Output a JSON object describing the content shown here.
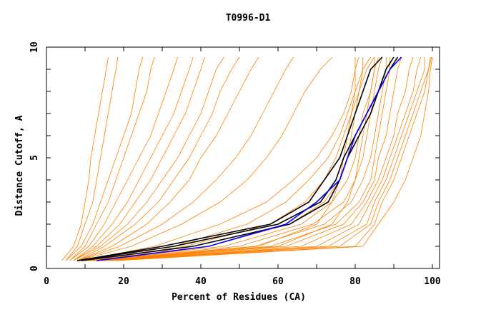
{
  "chart_data": {
    "type": "line",
    "title": "T0996-D1",
    "xlabel": "Percent of Residues (CA)",
    "ylabel": "Distance Cutoff, A",
    "xlim": [
      0,
      102
    ],
    "ylim": [
      0,
      10
    ],
    "xticks": [
      0,
      20,
      40,
      60,
      80,
      100
    ],
    "yticks": [
      0,
      5,
      10
    ],
    "grid": false,
    "colors": {
      "other": "#ff8000",
      "highlight_black": "#000000",
      "highlight_blue": "#0000ff"
    },
    "y_levels": [
      0.35,
      1,
      2,
      3,
      4,
      5,
      6,
      7,
      8,
      9,
      9.55
    ],
    "series": [
      {
        "color": "other",
        "x": [
          4,
          7,
          9,
          10,
          11,
          11.5,
          12.5,
          13.5,
          14.5,
          15.5,
          16
        ]
      },
      {
        "color": "other",
        "x": [
          5,
          8,
          10,
          12,
          13,
          14,
          15,
          16,
          17,
          18,
          18.5
        ]
      },
      {
        "color": "other",
        "x": [
          5,
          9,
          12,
          14,
          16,
          18,
          20,
          22,
          23,
          24,
          25
        ]
      },
      {
        "color": "other",
        "x": [
          6,
          10,
          13,
          16,
          18,
          20,
          22,
          24,
          26,
          27,
          28
        ]
      },
      {
        "color": "other",
        "x": [
          6,
          11,
          15,
          18,
          21,
          24,
          27,
          29,
          31,
          33,
          34
        ]
      },
      {
        "color": "other",
        "x": [
          7,
          12,
          17,
          21,
          24,
          27,
          30,
          33,
          35,
          37,
          38
        ]
      },
      {
        "color": "other",
        "x": [
          7,
          13,
          19,
          23,
          27,
          30,
          33,
          36,
          38,
          40,
          41
        ]
      },
      {
        "color": "other",
        "x": [
          7,
          14,
          21,
          26,
          30,
          34,
          37,
          40,
          42,
          44,
          46
        ]
      },
      {
        "color": "other",
        "x": [
          8,
          15,
          23,
          29,
          33,
          37,
          40,
          43,
          45,
          48,
          50
        ]
      },
      {
        "color": "other",
        "x": [
          8,
          17,
          26,
          32,
          37,
          40,
          44,
          47,
          50,
          53,
          55
        ]
      },
      {
        "color": "other",
        "x": [
          8,
          19,
          30,
          38,
          44,
          49,
          53,
          56,
          59,
          62,
          64
        ]
      },
      {
        "color": "other",
        "x": [
          8,
          22,
          35,
          45,
          52,
          57,
          61,
          64,
          67,
          71,
          74
        ]
      },
      {
        "color": "other",
        "x": [
          9,
          28,
          45,
          57,
          64,
          70,
          74,
          77,
          79,
          80,
          81
        ]
      },
      {
        "color": "other",
        "x": [
          9,
          33,
          52,
          62,
          68,
          73,
          76,
          78,
          80,
          82,
          84
        ]
      },
      {
        "color": "other",
        "x": [
          10,
          36,
          58,
          67,
          72,
          75,
          77,
          79,
          81,
          83,
          85
        ]
      },
      {
        "color": "other",
        "x": [
          10,
          42,
          63,
          72,
          76,
          78,
          79,
          80,
          81,
          82,
          82
        ]
      },
      {
        "color": "other",
        "x": [
          10,
          46,
          66,
          74,
          78,
          80,
          81,
          82,
          84,
          85,
          86
        ]
      },
      {
        "color": "other",
        "x": [
          11,
          50,
          69,
          77,
          80,
          82,
          83,
          84,
          85,
          86,
          87
        ]
      },
      {
        "color": "other",
        "x": [
          11,
          54,
          72,
          79,
          82,
          84,
          85,
          86,
          87,
          88,
          88
        ]
      },
      {
        "color": "other",
        "x": [
          12,
          58,
          75,
          81,
          84,
          85,
          86,
          87,
          88,
          89,
          89
        ]
      },
      {
        "color": "other",
        "x": [
          12,
          62,
          77,
          82,
          85,
          86,
          88,
          89,
          90,
          91,
          92
        ]
      },
      {
        "color": "other",
        "x": [
          13,
          66,
          79,
          83,
          86,
          88,
          90,
          91,
          93,
          94,
          95
        ]
      },
      {
        "color": "other",
        "x": [
          14,
          70,
          81,
          84,
          87,
          89,
          91,
          93,
          95,
          96,
          97
        ]
      },
      {
        "color": "other",
        "x": [
          15,
          73,
          83,
          85,
          88,
          90,
          92,
          94,
          96,
          98,
          98
        ]
      },
      {
        "color": "other",
        "x": [
          16,
          76,
          84,
          86,
          89,
          91,
          93,
          95,
          97,
          99,
          99.5
        ]
      },
      {
        "color": "other",
        "x": [
          17,
          80,
          85,
          87,
          90,
          92,
          94,
          96,
          98,
          99,
          99.8
        ]
      },
      {
        "color": "other",
        "x": [
          18,
          82,
          86,
          90,
          93,
          95,
          97,
          98,
          99,
          99.5,
          100
        ]
      },
      {
        "color": "other",
        "x": [
          14,
          60,
          74,
          78,
          80,
          81,
          82,
          83,
          84,
          85,
          85
        ]
      },
      {
        "color": "other",
        "x": [
          13,
          55,
          70,
          74,
          76,
          77,
          78,
          79,
          80,
          80,
          80
        ]
      },
      {
        "color": "highlight_black",
        "x": [
          8,
          30,
          58,
          68,
          72,
          76,
          78,
          80,
          82,
          84,
          87
        ]
      },
      {
        "color": "highlight_black",
        "x": [
          8,
          33,
          60,
          71,
          75,
          77,
          80,
          83,
          86,
          88,
          90
        ]
      },
      {
        "color": "highlight_black",
        "x": [
          9,
          38,
          63,
          73,
          76,
          78,
          81,
          84,
          86,
          89,
          91
        ]
      },
      {
        "color": "highlight_blue",
        "x": [
          13,
          42,
          62,
          70,
          76,
          78,
          80,
          83,
          86,
          89,
          92
        ]
      }
    ]
  }
}
